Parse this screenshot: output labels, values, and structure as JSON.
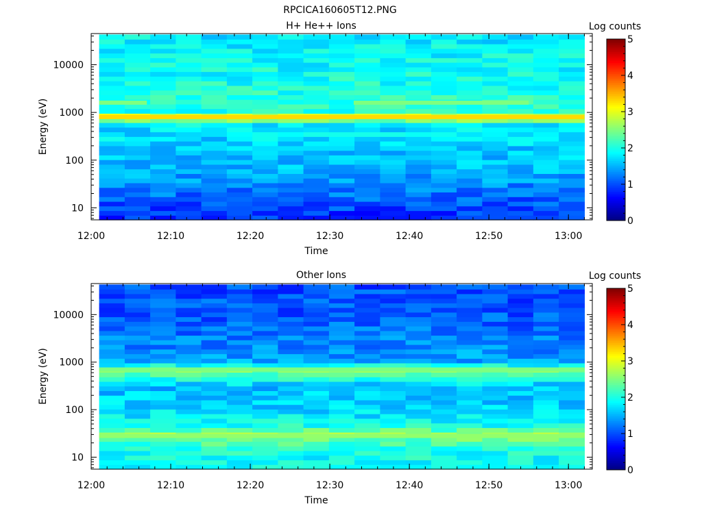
{
  "figure": {
    "title": "RPCICA160605T12.PNG"
  },
  "colors": {
    "colormap": [
      "#00007f",
      "#0000ff",
      "#007fff",
      "#00ffff",
      "#7fff7f",
      "#ffff00",
      "#ff7f00",
      "#ff0000",
      "#7f0000"
    ]
  },
  "chart_data": [
    {
      "type": "heatmap",
      "title": "H+ He++ Ions",
      "xlabel": "Time",
      "ylabel": "Energy (eV)",
      "yscale": "log",
      "ylim": [
        5.6,
        45000
      ],
      "xlim": [
        "12:00",
        "13:03"
      ],
      "x_ticks": [
        "12:00",
        "12:10",
        "12:20",
        "12:30",
        "12:40",
        "12:50",
        "13:00"
      ],
      "y_ticks": [
        "10",
        "100",
        "1000",
        "10000"
      ],
      "colorbar": {
        "label": "Log counts",
        "range": [
          0,
          5
        ],
        "ticks": [
          "0",
          "1",
          "2",
          "3",
          "4",
          "5"
        ]
      },
      "time_start": "12:01",
      "time_end": "13:02",
      "time_bins": 19,
      "energy_bins": 40,
      "energy_profile_log": [
        {
          "energy": 8,
          "value": 0.9
        },
        {
          "energy": 15,
          "value": 1.1
        },
        {
          "energy": 30,
          "value": 1.3
        },
        {
          "energy": 60,
          "value": 1.5
        },
        {
          "energy": 120,
          "value": 1.6
        },
        {
          "energy": 300,
          "value": 1.7
        },
        {
          "energy": 600,
          "value": 1.8
        },
        {
          "energy": 800,
          "value": 3.3
        },
        {
          "energy": 1000,
          "value": 2.0
        },
        {
          "energy": 1600,
          "value": 2.1
        },
        {
          "energy": 3000,
          "value": 2.0
        },
        {
          "energy": 10000,
          "value": 1.9
        },
        {
          "energy": 40000,
          "value": 1.8
        }
      ],
      "features": [
        {
          "type": "band",
          "energy": 800,
          "value": 3.3
        },
        {
          "type": "band",
          "energy": 1600,
          "value": 2.5,
          "intervals": [
            [
              "12:01",
              "12:07"
            ],
            [
              "12:33",
              "12:55"
            ]
          ]
        }
      ]
    },
    {
      "type": "heatmap",
      "title": "Other Ions",
      "xlabel": "Time",
      "ylabel": "Energy (eV)",
      "yscale": "log",
      "ylim": [
        5.6,
        45000
      ],
      "xlim": [
        "12:00",
        "13:03"
      ],
      "x_ticks": [
        "12:00",
        "12:10",
        "12:20",
        "12:30",
        "12:40",
        "12:50",
        "13:00"
      ],
      "y_ticks": [
        "10",
        "100",
        "1000",
        "10000"
      ],
      "colorbar": {
        "label": "Log counts",
        "range": [
          0,
          5
        ],
        "ticks": [
          "0",
          "1",
          "2",
          "3",
          "4",
          "5"
        ]
      },
      "time_start": "12:01",
      "time_end": "13:02",
      "time_bins": 19,
      "energy_bins": 40,
      "energy_profile_log": [
        {
          "energy": 8,
          "value": 1.9
        },
        {
          "energy": 15,
          "value": 2.0
        },
        {
          "energy": 25,
          "value": 2.4
        },
        {
          "energy": 30,
          "value": 2.6
        },
        {
          "energy": 50,
          "value": 1.9
        },
        {
          "energy": 100,
          "value": 1.7
        },
        {
          "energy": 300,
          "value": 1.55
        },
        {
          "energy": 700,
          "value": 2.5
        },
        {
          "energy": 1000,
          "value": 1.45
        },
        {
          "energy": 3000,
          "value": 1.25
        },
        {
          "energy": 10000,
          "value": 1.05
        },
        {
          "energy": 40000,
          "value": 1.0
        }
      ],
      "features": [
        {
          "type": "band",
          "energy": 700,
          "value": 2.5
        },
        {
          "type": "band",
          "energy": 28,
          "value": 2.6
        }
      ]
    }
  ]
}
